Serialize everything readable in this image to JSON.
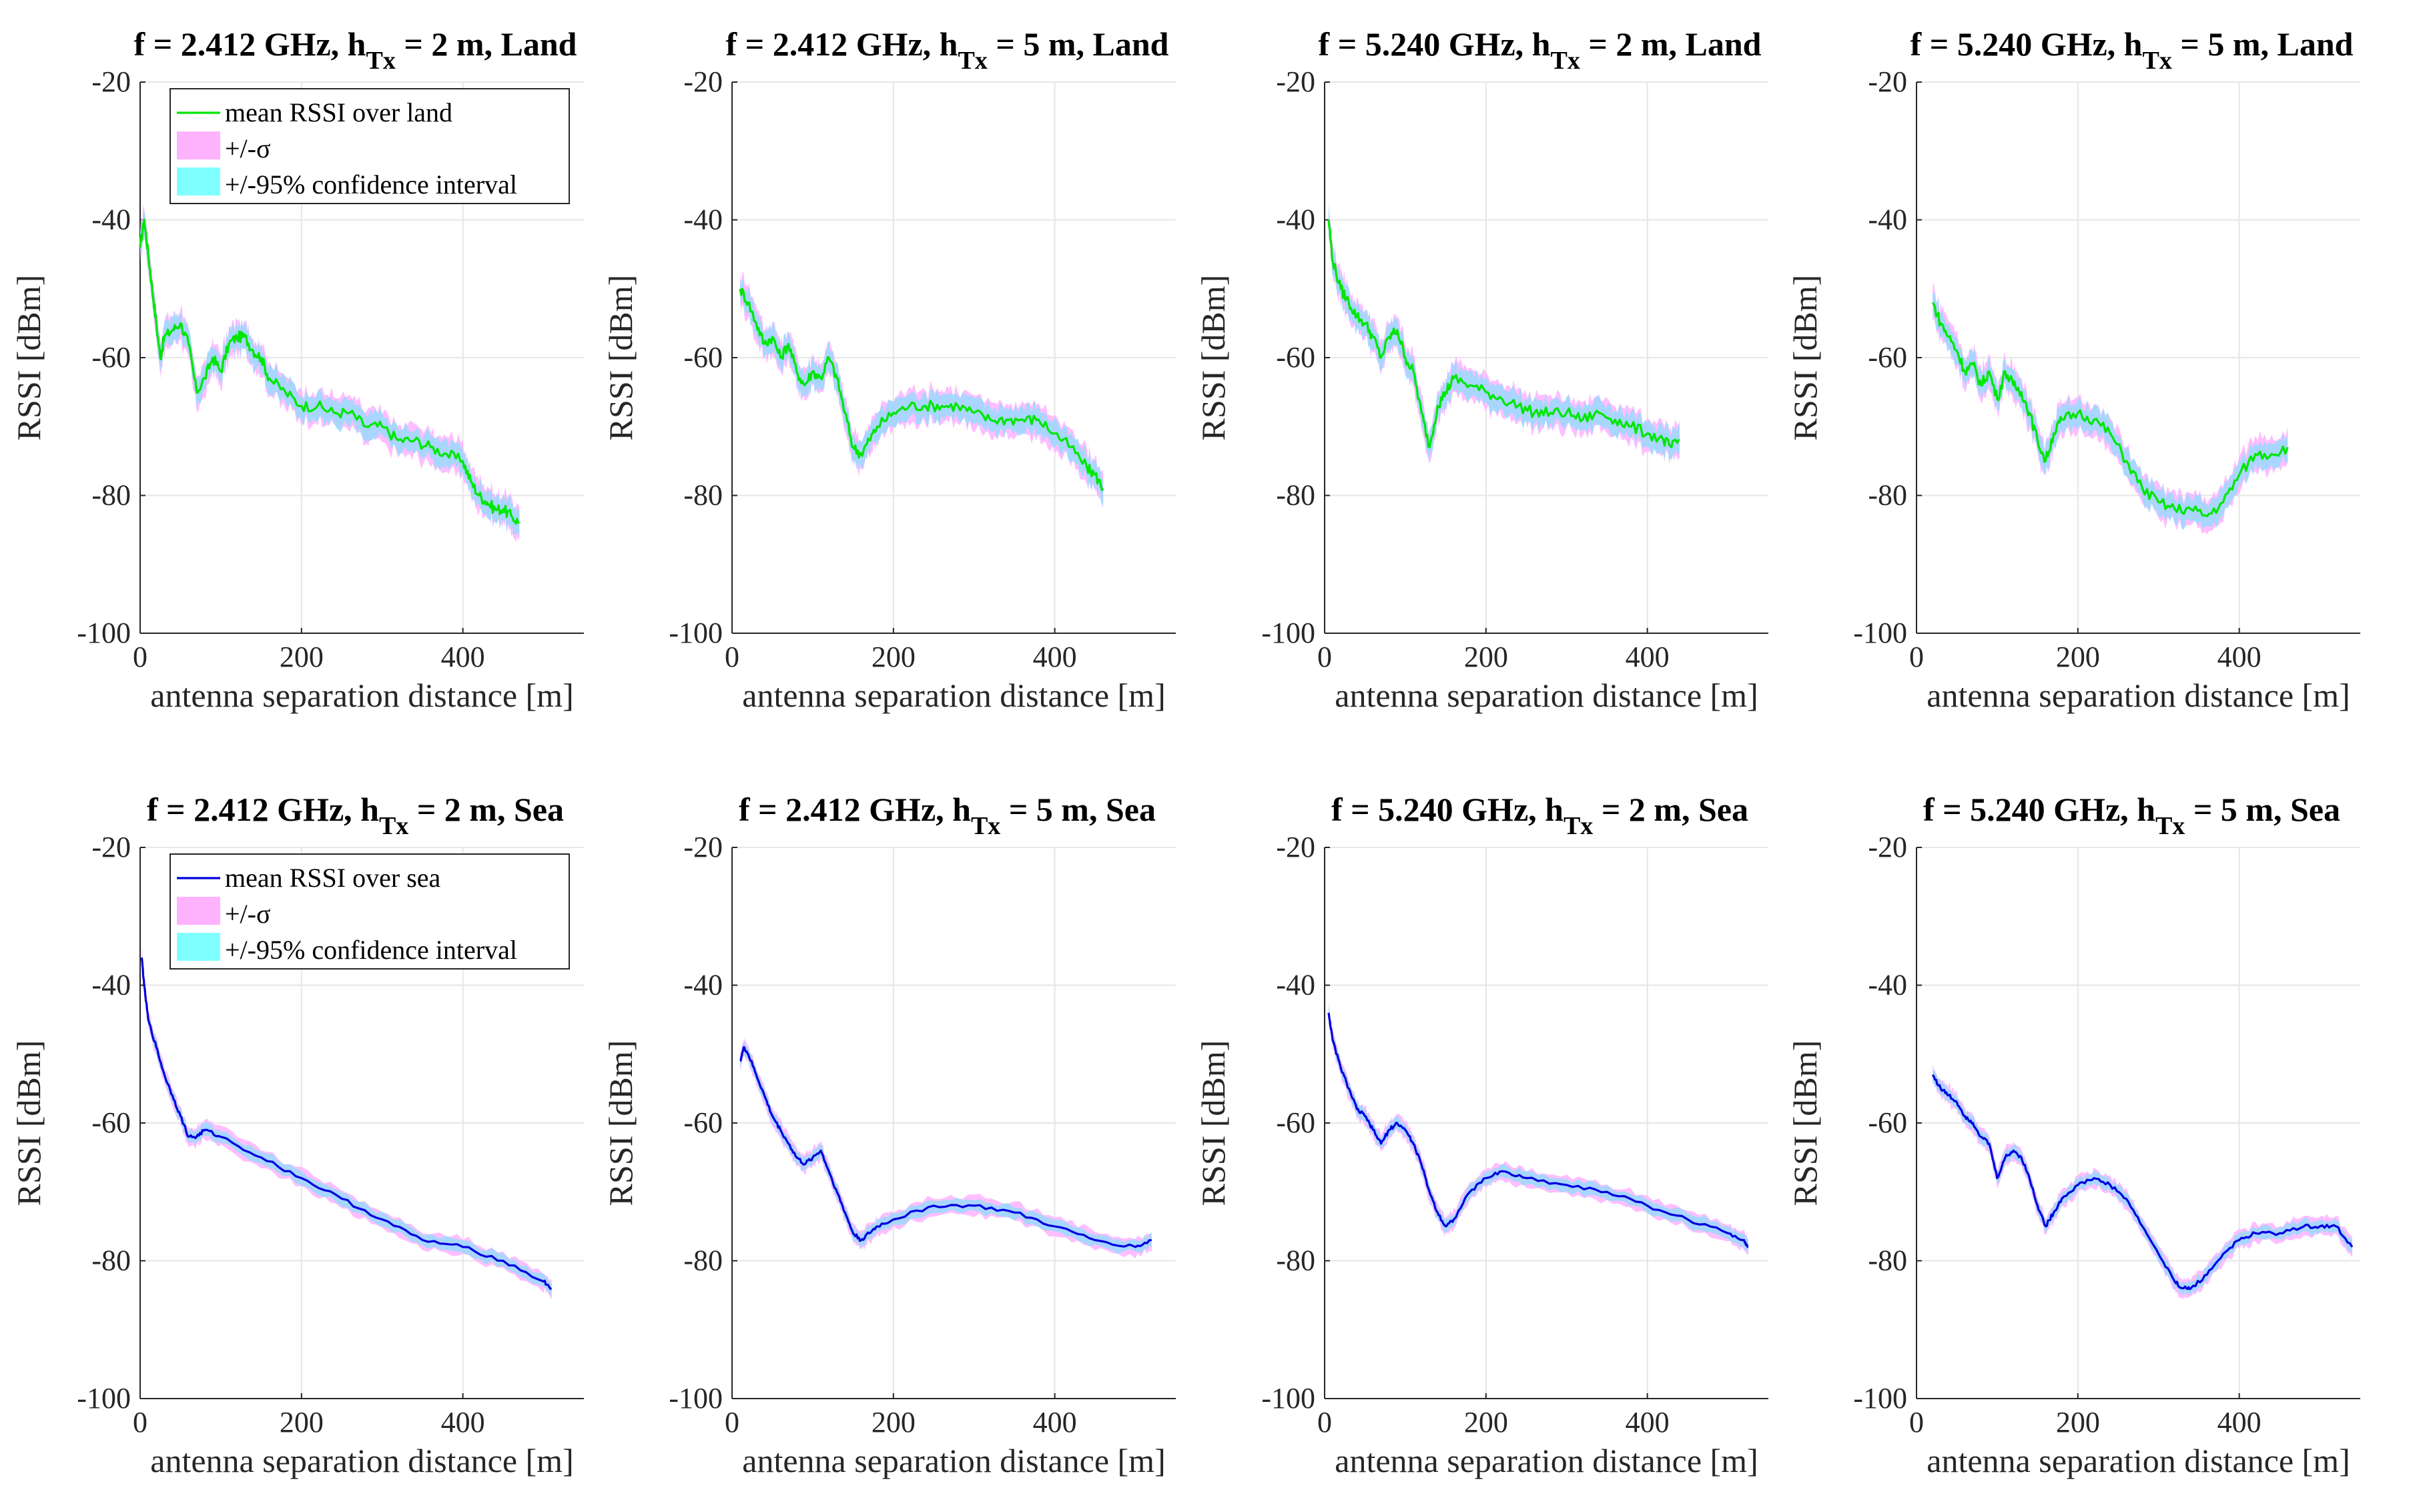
{
  "colors": {
    "land_line": "#00e600",
    "sea_line": "#0000dd",
    "sigma_fill": "#ffb3ff",
    "ci_fill": "#9ed8ff",
    "ci_legend": "#7fffff",
    "grid": "#e6e6e6",
    "axis": "#262626"
  },
  "chart_data": [
    {
      "type": "line",
      "title": {
        "prefix": "f = 2.412 GHz, h",
        "sub": "Tx",
        "suffix": " = 2 m, Land"
      },
      "xlabel": "antenna separation distance [m]",
      "ylabel": "RSSI [dBm]",
      "xlim": [
        0,
        550
      ],
      "ylim": [
        -100,
        -20
      ],
      "xticks": [
        "0",
        "200",
        "400"
      ],
      "yticks": [
        "-20",
        "-40",
        "-60",
        "-80",
        "-100"
      ],
      "medium": "land",
      "legend": [
        "mean RSSI over land",
        "+/-σ",
        "+/-95% confidence interval"
      ],
      "series": [
        {
          "name": "mean RSSI over land",
          "x": [
            0,
            5,
            10,
            15,
            20,
            25,
            30,
            40,
            50,
            60,
            70,
            80,
            90,
            100,
            110,
            120,
            130,
            140,
            150,
            160,
            180,
            200,
            220,
            240,
            260,
            280,
            300,
            320,
            340,
            360,
            380,
            400,
            410,
            420,
            430,
            440,
            450,
            460,
            470
          ],
          "y": [
            -44,
            -40,
            -45,
            -50,
            -55,
            -60,
            -57,
            -56,
            -55,
            -58,
            -65,
            -63,
            -60,
            -62,
            -58,
            -57,
            -57,
            -59,
            -60,
            -63,
            -65,
            -67,
            -67,
            -68,
            -68,
            -70,
            -70,
            -72,
            -72,
            -73,
            -74,
            -75,
            -78,
            -80,
            -81,
            -82,
            -82,
            -83,
            -84
          ]
        }
      ]
    },
    {
      "type": "line",
      "title": {
        "prefix": "f = 2.412 GHz, h",
        "sub": "Tx",
        "suffix": " = 5 m, Land"
      },
      "xlabel": "antenna separation distance [m]",
      "ylabel": "RSSI [dBm]",
      "xlim": [
        0,
        550
      ],
      "ylim": [
        -100,
        -20
      ],
      "xticks": [
        "0",
        "200",
        "400"
      ],
      "yticks": [
        "-20",
        "-40",
        "-60",
        "-80",
        "-100"
      ],
      "medium": "land",
      "series": [
        {
          "name": "mean RSSI over land",
          "x": [
            10,
            20,
            30,
            40,
            50,
            60,
            70,
            80,
            90,
            100,
            110,
            120,
            130,
            140,
            150,
            160,
            170,
            180,
            200,
            220,
            240,
            260,
            280,
            300,
            320,
            340,
            360,
            380,
            400,
            420,
            440,
            450,
            460
          ],
          "y": [
            -50,
            -52,
            -55,
            -58,
            -57,
            -60,
            -58,
            -62,
            -64,
            -62,
            -63,
            -60,
            -63,
            -68,
            -73,
            -74,
            -72,
            -70,
            -68,
            -67,
            -67,
            -67,
            -67,
            -68,
            -69,
            -69,
            -69,
            -69,
            -71,
            -73,
            -76,
            -77,
            -79
          ]
        }
      ]
    },
    {
      "type": "line",
      "title": {
        "prefix": "f = 5.240 GHz, h",
        "sub": "Tx",
        "suffix": " = 2 m, Land"
      },
      "xlabel": "antenna separation distance [m]",
      "ylabel": "RSSI [dBm]",
      "xlim": [
        0,
        550
      ],
      "ylim": [
        -100,
        -20
      ],
      "xticks": [
        "0",
        "200",
        "400"
      ],
      "yticks": [
        "-20",
        "-40",
        "-60",
        "-80",
        "-100"
      ],
      "medium": "land",
      "series": [
        {
          "name": "mean RSSI over land",
          "x": [
            5,
            10,
            20,
            30,
            40,
            50,
            60,
            70,
            80,
            90,
            100,
            110,
            120,
            130,
            140,
            150,
            160,
            180,
            200,
            220,
            240,
            260,
            280,
            300,
            320,
            340,
            360,
            380,
            400,
            420,
            430,
            440
          ],
          "y": [
            -40,
            -46,
            -50,
            -52,
            -54,
            -55,
            -57,
            -60,
            -57,
            -56,
            -60,
            -62,
            -68,
            -73,
            -67,
            -65,
            -63,
            -64,
            -65,
            -66,
            -67,
            -68,
            -68,
            -68,
            -69,
            -68,
            -69,
            -70,
            -71,
            -72,
            -73,
            -72
          ]
        }
      ]
    },
    {
      "type": "line",
      "title": {
        "prefix": "f = 5.240 GHz, h",
        "sub": "Tx",
        "suffix": " = 5 m, Land"
      },
      "xlabel": "antenna separation distance [m]",
      "ylabel": "RSSI [dBm]",
      "xlim": [
        0,
        550
      ],
      "ylim": [
        -100,
        -20
      ],
      "xticks": [
        "0",
        "200",
        "400"
      ],
      "yticks": [
        "-20",
        "-40",
        "-60",
        "-80",
        "-100"
      ],
      "medium": "land",
      "series": [
        {
          "name": "mean RSSI over land",
          "x": [
            20,
            30,
            40,
            50,
            60,
            70,
            80,
            90,
            100,
            110,
            120,
            130,
            140,
            150,
            160,
            170,
            180,
            200,
            220,
            240,
            260,
            280,
            300,
            320,
            340,
            360,
            380,
            400,
            420,
            440,
            460
          ],
          "y": [
            -52,
            -55,
            -57,
            -59,
            -62,
            -61,
            -64,
            -62,
            -66,
            -62,
            -64,
            -65,
            -68,
            -72,
            -75,
            -71,
            -69,
            -68,
            -69,
            -71,
            -75,
            -79,
            -81,
            -82,
            -82,
            -83,
            -81,
            -77,
            -74,
            -74,
            -73
          ]
        }
      ]
    },
    {
      "type": "line",
      "title": {
        "prefix": "f = 2.412 GHz, h",
        "sub": "Tx",
        "suffix": " = 2 m, Sea"
      },
      "xlabel": "antenna separation distance [m]",
      "ylabel": "RSSI [dBm]",
      "xlim": [
        0,
        550
      ],
      "ylim": [
        -100,
        -20
      ],
      "xticks": [
        "0",
        "200",
        "400"
      ],
      "yticks": [
        "-20",
        "-40",
        "-60",
        "-80",
        "-100"
      ],
      "medium": "sea",
      "legend": [
        "mean RSSI over sea",
        "+/-σ",
        "+/-95% confidence interval"
      ],
      "series": [
        {
          "name": "mean RSSI over sea",
          "x": [
            2,
            5,
            10,
            20,
            30,
            40,
            50,
            60,
            70,
            80,
            100,
            150,
            200,
            250,
            300,
            350,
            400,
            450,
            500,
            510
          ],
          "y": [
            -36,
            -40,
            -45,
            -49,
            -53,
            -56,
            -59,
            -62,
            -62,
            -61,
            -62,
            -65,
            -68,
            -71,
            -74,
            -77,
            -78,
            -80,
            -83,
            -84
          ]
        }
      ]
    },
    {
      "type": "line",
      "title": {
        "prefix": "f = 2.412 GHz, h",
        "sub": "Tx",
        "suffix": " = 5 m, Sea"
      },
      "xlabel": "antenna separation distance [m]",
      "ylabel": "RSSI [dBm]",
      "xlim": [
        0,
        550
      ],
      "ylim": [
        -100,
        -20
      ],
      "xticks": [
        "0",
        "200",
        "400"
      ],
      "yticks": [
        "-20",
        "-40",
        "-60",
        "-80",
        "-100"
      ],
      "medium": "sea",
      "series": [
        {
          "name": "mean RSSI over sea",
          "x": [
            10,
            15,
            20,
            30,
            40,
            50,
            60,
            70,
            80,
            90,
            100,
            110,
            120,
            130,
            140,
            150,
            160,
            170,
            180,
            200,
            250,
            300,
            350,
            400,
            450,
            500,
            520
          ],
          "y": [
            -51,
            -49,
            -50,
            -53,
            -56,
            -59,
            -61,
            -63,
            -65,
            -66,
            -65,
            -64,
            -67,
            -70,
            -73,
            -76,
            -77,
            -76,
            -75,
            -74,
            -72,
            -72,
            -73,
            -75,
            -77,
            -78,
            -77
          ]
        }
      ]
    },
    {
      "type": "line",
      "title": {
        "prefix": "f = 5.240 GHz, h",
        "sub": "Tx",
        "suffix": " = 2 m, Sea"
      },
      "xlabel": "antenna separation distance [m]",
      "ylabel": "RSSI [dBm]",
      "xlim": [
        0,
        550
      ],
      "ylim": [
        -100,
        -20
      ],
      "xticks": [
        "0",
        "200",
        "400"
      ],
      "yticks": [
        "-20",
        "-40",
        "-60",
        "-80",
        "-100"
      ],
      "medium": "sea",
      "series": [
        {
          "name": "mean RSSI over sea",
          "x": [
            5,
            10,
            20,
            30,
            40,
            50,
            60,
            70,
            80,
            90,
            100,
            110,
            120,
            130,
            140,
            150,
            160,
            180,
            200,
            220,
            250,
            300,
            350,
            400,
            450,
            500,
            520,
            525
          ],
          "y": [
            -44,
            -48,
            -52,
            -55,
            -58,
            -59,
            -61,
            -63,
            -61,
            -60,
            -61,
            -63,
            -66,
            -70,
            -73,
            -75,
            -74,
            -70,
            -68,
            -67,
            -68,
            -69,
            -70,
            -72,
            -74,
            -76,
            -77,
            -78
          ]
        }
      ]
    },
    {
      "type": "line",
      "title": {
        "prefix": "f = 5.240 GHz, h",
        "sub": "Tx",
        "suffix": " = 5 m, Sea"
      },
      "xlabel": "antenna separation distance [m]",
      "ylabel": "RSSI [dBm]",
      "xlim": [
        0,
        550
      ],
      "ylim": [
        -100,
        -20
      ],
      "xticks": [
        "0",
        "200",
        "400"
      ],
      "yticks": [
        "-20",
        "-40",
        "-60",
        "-80",
        "-100"
      ],
      "medium": "sea",
      "series": [
        {
          "name": "mean RSSI over sea",
          "x": [
            20,
            30,
            40,
            50,
            60,
            70,
            80,
            90,
            100,
            110,
            120,
            130,
            140,
            150,
            160,
            170,
            180,
            200,
            220,
            240,
            260,
            280,
            300,
            320,
            330,
            340,
            360,
            380,
            400,
            420,
            450,
            480,
            500,
            520,
            540
          ],
          "y": [
            -53,
            -55,
            -56,
            -57,
            -59,
            -60,
            -62,
            -63,
            -68,
            -65,
            -64,
            -65,
            -68,
            -72,
            -75,
            -73,
            -71,
            -69,
            -68,
            -69,
            -71,
            -75,
            -79,
            -83,
            -84,
            -84,
            -82,
            -79,
            -77,
            -76,
            -76,
            -75,
            -75,
            -75,
            -78
          ]
        }
      ]
    }
  ]
}
